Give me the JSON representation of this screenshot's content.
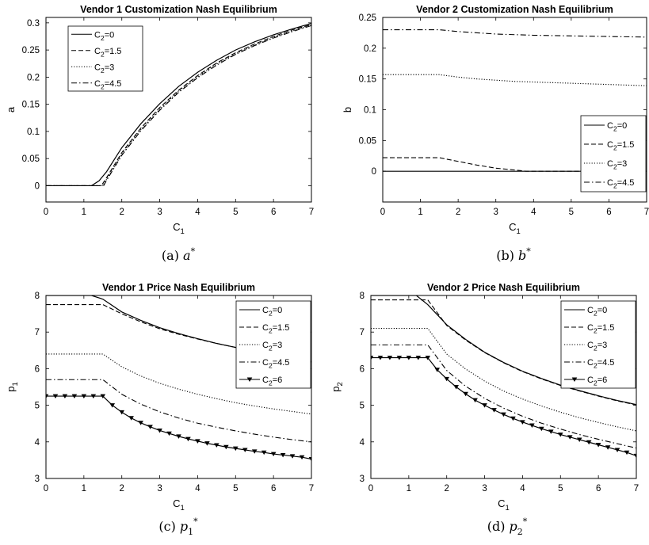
{
  "figure": {
    "captions": [
      {
        "prefix": "(a) ",
        "sym": "a",
        "sub": "",
        "sup": "*"
      },
      {
        "prefix": "(b) ",
        "sym": "b",
        "sub": "",
        "sup": "*"
      },
      {
        "prefix": "(c) ",
        "sym": "p",
        "sub": "1",
        "sup": "*"
      },
      {
        "prefix": "(d) ",
        "sym": "p",
        "sub": "2",
        "sup": "*"
      }
    ]
  },
  "chart_data": [
    {
      "type": "line",
      "title": "Vendor 1 Customization Nash Equilibrium",
      "xlabel": {
        "base": "C",
        "sub": "1"
      },
      "ylabel": {
        "base": "a",
        "sub": ""
      },
      "xlim": [
        0,
        7
      ],
      "ylim": [
        -0.03,
        0.31
      ],
      "xticks": [
        "0",
        "1",
        "2",
        "3",
        "4",
        "5",
        "6",
        "7"
      ],
      "yticks": [
        "0",
        "0.05",
        "0.1",
        "0.15",
        "0.2",
        "0.25",
        "0.3"
      ],
      "grid": false,
      "legend_position": "top-left",
      "series": [
        {
          "name": {
            "base": "C",
            "sub": "2",
            "rest": "=0"
          },
          "style": "solid",
          "marker": "none",
          "x": [
            0,
            1.2,
            1.4,
            1.6,
            2,
            2.5,
            3,
            3.5,
            4,
            4.5,
            5,
            5.5,
            6,
            6.5,
            7
          ],
          "y": [
            0,
            0,
            0.009,
            0.026,
            0.07,
            0.114,
            0.151,
            0.183,
            0.209,
            0.231,
            0.25,
            0.265,
            0.278,
            0.289,
            0.299
          ]
        },
        {
          "name": {
            "base": "C",
            "sub": "2",
            "rest": "=1.5"
          },
          "style": "dashed",
          "marker": "none",
          "x": [
            0,
            1.46,
            1.6,
            2,
            2.5,
            3,
            3.5,
            4,
            4.5,
            5,
            5.5,
            6,
            6.5,
            7
          ],
          "y": [
            0,
            0,
            0.015,
            0.061,
            0.106,
            0.144,
            0.176,
            0.203,
            0.226,
            0.245,
            0.261,
            0.275,
            0.287,
            0.297
          ]
        },
        {
          "name": {
            "base": "C",
            "sub": "2",
            "rest": "=3"
          },
          "style": "dotted",
          "marker": "none",
          "x": [
            0,
            1.5,
            1.6,
            2,
            2.5,
            3,
            3.5,
            4,
            4.5,
            5,
            5.5,
            6,
            6.5,
            7
          ],
          "y": [
            0,
            0,
            0.012,
            0.058,
            0.103,
            0.141,
            0.174,
            0.201,
            0.224,
            0.243,
            0.259,
            0.273,
            0.285,
            0.296
          ]
        },
        {
          "name": {
            "base": "C",
            "sub": "2",
            "rest": "=4.5"
          },
          "style": "dashdot",
          "marker": "none",
          "x": [
            0,
            1.52,
            1.6,
            2,
            2.5,
            3,
            3.5,
            4,
            4.5,
            5,
            5.5,
            6,
            6.5,
            7
          ],
          "y": [
            0,
            0,
            0.01,
            0.056,
            0.101,
            0.139,
            0.172,
            0.199,
            0.222,
            0.242,
            0.258,
            0.272,
            0.284,
            0.295
          ]
        }
      ]
    },
    {
      "type": "line",
      "title": "Vendor 2 Customization Nash Equilibrium",
      "xlabel": {
        "base": "C",
        "sub": "1"
      },
      "ylabel": {
        "base": "b",
        "sub": ""
      },
      "xlim": [
        0,
        7
      ],
      "ylim": [
        -0.05,
        0.25
      ],
      "xticks": [
        "0",
        "1",
        "2",
        "3",
        "4",
        "5",
        "6",
        "7"
      ],
      "yticks": [
        "0",
        "0.05",
        "0.1",
        "0.15",
        "0.2",
        "0.25"
      ],
      "grid": false,
      "legend_position": "right",
      "series": [
        {
          "name": {
            "base": "C",
            "sub": "2",
            "rest": "=0"
          },
          "style": "solid",
          "marker": "none",
          "x": [
            0,
            7
          ],
          "y": [
            0,
            0
          ]
        },
        {
          "name": {
            "base": "C",
            "sub": "2",
            "rest": "=1.5"
          },
          "style": "dashed",
          "marker": "none",
          "x": [
            0,
            1.5,
            2,
            2.5,
            3,
            3.5,
            3.8,
            4,
            5,
            6,
            7
          ],
          "y": [
            0.022,
            0.022,
            0.016,
            0.01,
            0.005,
            0.002,
            0,
            0,
            0,
            0,
            0
          ]
        },
        {
          "name": {
            "base": "C",
            "sub": "2",
            "rest": "=3"
          },
          "style": "dotted",
          "marker": "none",
          "x": [
            0,
            1.5,
            2,
            2.5,
            3,
            3.5,
            4,
            5,
            6,
            7
          ],
          "y": [
            0.157,
            0.157,
            0.153,
            0.15,
            0.148,
            0.146,
            0.145,
            0.143,
            0.141,
            0.139
          ]
        },
        {
          "name": {
            "base": "C",
            "sub": "2",
            "rest": "=4.5"
          },
          "style": "dashdot",
          "marker": "none",
          "x": [
            0,
            1.5,
            2,
            2.5,
            3,
            4,
            5,
            6,
            7
          ],
          "y": [
            0.23,
            0.23,
            0.227,
            0.225,
            0.223,
            0.221,
            0.22,
            0.219,
            0.218
          ]
        }
      ]
    },
    {
      "type": "line",
      "title": "Vendor 1 Price Nash Equilibrium",
      "xlabel": {
        "base": "C",
        "sub": "1"
      },
      "ylabel": {
        "base": "p",
        "sub": "1"
      },
      "xlim": [
        0,
        7
      ],
      "ylim": [
        3,
        8
      ],
      "xticks": [
        "0",
        "1",
        "2",
        "3",
        "4",
        "5",
        "6",
        "7"
      ],
      "yticks": [
        "3",
        "4",
        "5",
        "6",
        "7",
        "8"
      ],
      "grid": false,
      "legend_position": "top-right",
      "series": [
        {
          "name": {
            "base": "C",
            "sub": "2",
            "rest": "=0"
          },
          "style": "solid",
          "marker": "none",
          "x": [
            0,
            1.2,
            1.5,
            2,
            2.5,
            3,
            3.5,
            4,
            4.5,
            5,
            5.5,
            6,
            6.5,
            7
          ],
          "y": [
            8,
            8,
            7.9,
            7.55,
            7.32,
            7.12,
            6.96,
            6.82,
            6.69,
            6.58,
            6.47,
            6.37,
            6.27,
            6.18
          ]
        },
        {
          "name": {
            "base": "C",
            "sub": "2",
            "rest": "=1.5"
          },
          "style": "dashed",
          "marker": "none",
          "x": [
            0,
            1.5,
            2,
            2.5,
            3,
            3.5,
            4,
            4.5,
            5,
            5.5,
            6,
            6.5,
            7
          ],
          "y": [
            7.75,
            7.75,
            7.5,
            7.28,
            7.09,
            6.94,
            6.81,
            6.69,
            6.58,
            6.47,
            6.37,
            6.28,
            6.19
          ]
        },
        {
          "name": {
            "base": "C",
            "sub": "2",
            "rest": "=3"
          },
          "style": "dotted",
          "marker": "none",
          "x": [
            0,
            1.5,
            2,
            2.5,
            3,
            3.5,
            4,
            4.5,
            5,
            5.5,
            6,
            6.5,
            7
          ],
          "y": [
            6.4,
            6.4,
            6.05,
            5.8,
            5.6,
            5.44,
            5.3,
            5.18,
            5.07,
            4.98,
            4.9,
            4.83,
            4.76
          ]
        },
        {
          "name": {
            "base": "C",
            "sub": "2",
            "rest": "=4.5"
          },
          "style": "dashdot",
          "marker": "none",
          "x": [
            0,
            1.5,
            2,
            2.5,
            3,
            3.5,
            4,
            4.5,
            5,
            5.5,
            6,
            6.5,
            7
          ],
          "y": [
            5.7,
            5.7,
            5.3,
            5.03,
            4.82,
            4.65,
            4.51,
            4.4,
            4.3,
            4.21,
            4.13,
            4.06,
            4.0
          ]
        },
        {
          "name": {
            "base": "C",
            "sub": "2",
            "rest": "=6"
          },
          "style": "solid",
          "marker": "triangle-down",
          "x": [
            0,
            0.25,
            0.5,
            0.75,
            1,
            1.25,
            1.5,
            1.75,
            2,
            2.25,
            2.5,
            2.75,
            3,
            3.25,
            3.5,
            3.75,
            4,
            4.25,
            4.5,
            4.75,
            5,
            5.25,
            5.5,
            5.75,
            6,
            6.25,
            6.5,
            6.75,
            7
          ],
          "y": [
            5.25,
            5.25,
            5.25,
            5.25,
            5.25,
            5.25,
            5.25,
            5.0,
            4.81,
            4.65,
            4.52,
            4.41,
            4.31,
            4.23,
            4.15,
            4.08,
            4.02,
            3.96,
            3.91,
            3.86,
            3.82,
            3.78,
            3.74,
            3.71,
            3.67,
            3.64,
            3.61,
            3.58,
            3.53
          ]
        }
      ]
    },
    {
      "type": "line",
      "title": "Vendor 2 Price Nash Equilibrium",
      "xlabel": {
        "base": "C",
        "sub": "1"
      },
      "ylabel": {
        "base": "p",
        "sub": "2"
      },
      "xlim": [
        0,
        7
      ],
      "ylim": [
        3,
        8
      ],
      "xticks": [
        "0",
        "1",
        "2",
        "3",
        "4",
        "5",
        "6",
        "7"
      ],
      "yticks": [
        "3",
        "4",
        "5",
        "6",
        "7",
        "8"
      ],
      "grid": false,
      "legend_position": "top-right",
      "series": [
        {
          "name": {
            "base": "C",
            "sub": "2",
            "rest": "=0"
          },
          "style": "solid",
          "marker": "none",
          "x": [
            0,
            1.2,
            1.5,
            2,
            2.5,
            3,
            3.5,
            4,
            4.5,
            5,
            5.5,
            6,
            6.5,
            7
          ],
          "y": [
            8,
            8,
            7.75,
            7.2,
            6.8,
            6.45,
            6.17,
            5.93,
            5.73,
            5.55,
            5.4,
            5.26,
            5.13,
            5.02
          ]
        },
        {
          "name": {
            "base": "C",
            "sub": "2",
            "rest": "=1.5"
          },
          "style": "dashed",
          "marker": "none",
          "x": [
            0,
            1.5,
            2,
            2.5,
            3,
            3.5,
            4,
            4.5,
            5,
            5.5,
            6,
            6.5,
            7
          ],
          "y": [
            7.88,
            7.88,
            7.18,
            6.78,
            6.44,
            6.16,
            5.92,
            5.72,
            5.54,
            5.39,
            5.25,
            5.12,
            5.01
          ]
        },
        {
          "name": {
            "base": "C",
            "sub": "2",
            "rest": "=3"
          },
          "style": "dotted",
          "marker": "none",
          "x": [
            0,
            1.5,
            2,
            2.5,
            3,
            3.5,
            4,
            4.5,
            5,
            5.5,
            6,
            6.5,
            7
          ],
          "y": [
            7.1,
            7.1,
            6.4,
            5.99,
            5.66,
            5.39,
            5.17,
            4.98,
            4.81,
            4.66,
            4.53,
            4.41,
            4.3
          ]
        },
        {
          "name": {
            "base": "C",
            "sub": "2",
            "rest": "=4.5"
          },
          "style": "dashdot",
          "marker": "none",
          "x": [
            0,
            1.5,
            2,
            2.5,
            3,
            3.5,
            4,
            4.5,
            5,
            5.5,
            6,
            6.5,
            7
          ],
          "y": [
            6.65,
            6.65,
            5.95,
            5.52,
            5.19,
            4.92,
            4.7,
            4.51,
            4.35,
            4.2,
            4.07,
            3.95,
            3.83
          ]
        },
        {
          "name": {
            "base": "C",
            "sub": "2",
            "rest": "=6"
          },
          "style": "solid",
          "marker": "triangle-down",
          "x": [
            0,
            0.25,
            0.5,
            0.75,
            1,
            1.25,
            1.5,
            1.75,
            2,
            2.25,
            2.5,
            2.75,
            3,
            3.25,
            3.5,
            3.75,
            4,
            4.25,
            4.5,
            4.75,
            5,
            5.25,
            5.5,
            5.75,
            6,
            6.25,
            6.5,
            6.75,
            7
          ],
          "y": [
            6.3,
            6.3,
            6.3,
            6.3,
            6.3,
            6.3,
            6.3,
            5.97,
            5.72,
            5.5,
            5.31,
            5.14,
            5.0,
            4.87,
            4.75,
            4.64,
            4.54,
            4.45,
            4.36,
            4.28,
            4.2,
            4.13,
            4.06,
            3.99,
            3.92,
            3.85,
            3.78,
            3.71,
            3.62
          ]
        }
      ]
    }
  ]
}
